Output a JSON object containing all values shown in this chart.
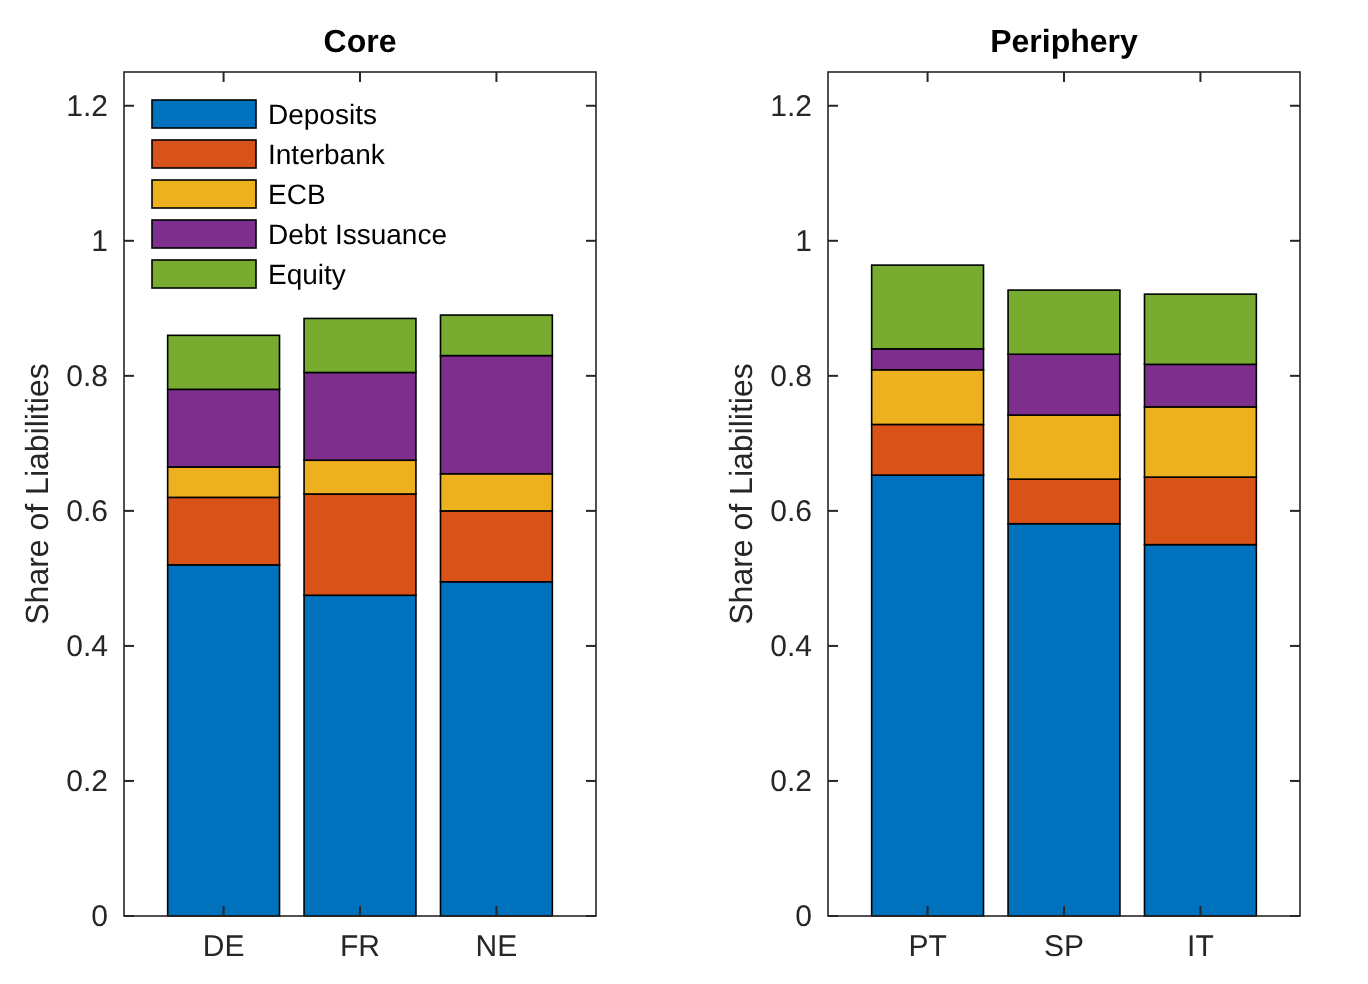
{
  "chart_data": [
    {
      "type": "bar",
      "title": "Core",
      "ylabel": "Share of Liabilities",
      "categories": [
        "DE",
        "FR",
        "NE"
      ],
      "stacked": true,
      "ylim": [
        0,
        1.25
      ],
      "yticks": [
        0,
        0.2,
        0.4,
        0.6,
        0.8,
        1,
        1.2
      ],
      "legend": "top left",
      "series": [
        {
          "name": "Deposits",
          "color": "#0072bd",
          "values": [
            0.52,
            0.475,
            0.495
          ]
        },
        {
          "name": "Interbank",
          "color": "#d95319",
          "values": [
            0.1,
            0.15,
            0.105
          ]
        },
        {
          "name": "ECB",
          "color": "#edb120",
          "values": [
            0.045,
            0.05,
            0.055
          ]
        },
        {
          "name": "Debt Issuance",
          "color": "#7e2f8e",
          "values": [
            0.115,
            0.13,
            0.175
          ]
        },
        {
          "name": "Equity",
          "color": "#77ac30",
          "values": [
            0.08,
            0.08,
            0.06
          ]
        }
      ]
    },
    {
      "type": "bar",
      "title": "Periphery",
      "ylabel": "Share of Liabilities",
      "categories": [
        "PT",
        "SP",
        "IT"
      ],
      "stacked": true,
      "ylim": [
        0,
        1.25
      ],
      "yticks": [
        0,
        0.2,
        0.4,
        0.6,
        0.8,
        1,
        1.2
      ],
      "series": [
        {
          "color": "#0072bd",
          "values": [
            0.653,
            0.581,
            0.55
          ]
        },
        {
          "color": "#d95319",
          "values": [
            0.075,
            0.066,
            0.1
          ]
        },
        {
          "color": "#edb120",
          "values": [
            0.081,
            0.095,
            0.104
          ]
        },
        {
          "color": "#7e2f8e",
          "values": [
            0.031,
            0.09,
            0.063
          ]
        },
        {
          "color": "#77ac30",
          "values": [
            0.124,
            0.095,
            0.104
          ]
        }
      ]
    }
  ]
}
